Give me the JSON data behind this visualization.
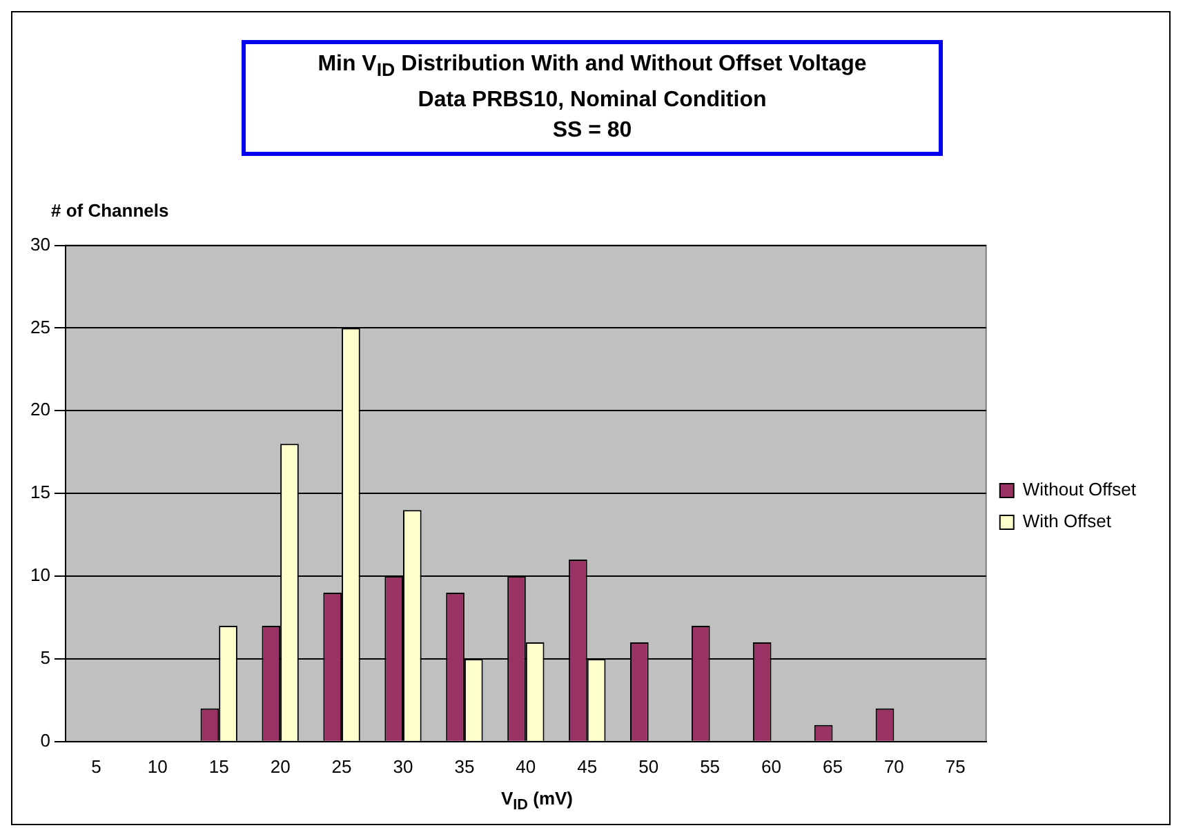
{
  "chart_data": {
    "type": "bar",
    "title": "Min V$_{ID}$ Distribution With and Without Offset Voltage\nData PRBS10, Nominal Condition\nSS = 80",
    "xlabel": "V$_{ID}$ (mV)",
    "ylabel": "# of Channels",
    "categories": [
      "5",
      "10",
      "15",
      "20",
      "25",
      "30",
      "35",
      "40",
      "45",
      "50",
      "55",
      "60",
      "65",
      "70",
      "75"
    ],
    "series": [
      {
        "name": "Without Offset",
        "color": "#993366",
        "values": [
          0,
          0,
          2,
          7,
          9,
          10,
          9,
          10,
          11,
          6,
          7,
          6,
          1,
          2,
          0
        ]
      },
      {
        "name": "With Offset",
        "color": "#ffffcc",
        "values": [
          0,
          0,
          7,
          18,
          25,
          14,
          5,
          6,
          5,
          0,
          0,
          0,
          0,
          0,
          0
        ]
      }
    ],
    "ylim": [
      0,
      30
    ],
    "yticks": [
      0,
      5,
      10,
      15,
      20,
      25,
      30
    ],
    "grid": "y",
    "legend": "right"
  }
}
